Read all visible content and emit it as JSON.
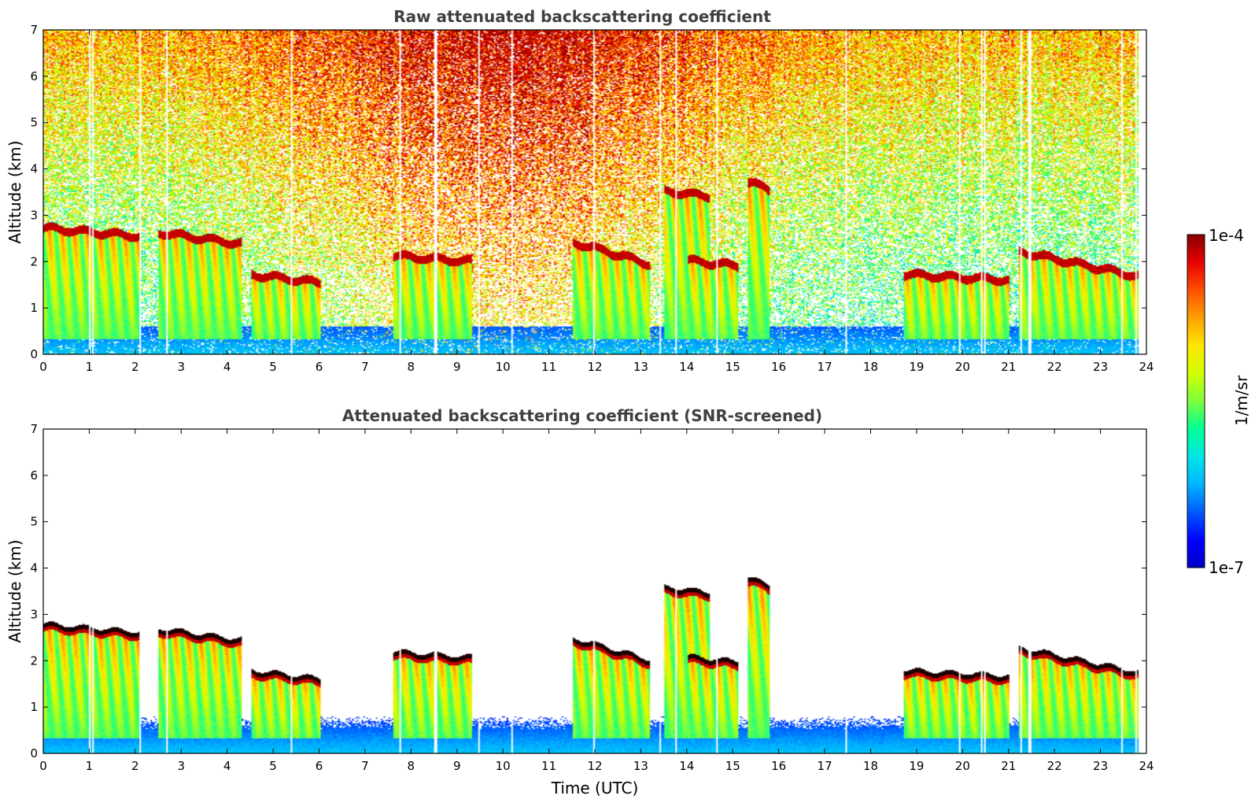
{
  "colors": {
    "colormap": [
      "#0000c8",
      "#0000ff",
      "#005aff",
      "#00b4ff",
      "#00e6e6",
      "#00ff96",
      "#7dff3c",
      "#d2ff00",
      "#ffe600",
      "#ffa000",
      "#ff5000",
      "#e60000",
      "#8b0000"
    ],
    "saturated": "#1a0000",
    "axis": "#000000",
    "title": "#404040"
  },
  "chart_data": [
    {
      "type": "heatmap",
      "title": "Raw attenuated backscattering coefficient",
      "ylabel": "Altitude (km)",
      "xlabel": "",
      "xlim": [
        0,
        24
      ],
      "ylim": [
        0,
        7
      ],
      "xticks": [
        "0",
        "1",
        "2",
        "3",
        "4",
        "5",
        "6",
        "7",
        "8",
        "9",
        "10",
        "11",
        "12",
        "13",
        "14",
        "15",
        "16",
        "17",
        "18",
        "19",
        "20",
        "21",
        "22",
        "23",
        "24"
      ],
      "yticks": [
        "0",
        "1",
        "2",
        "3",
        "4",
        "5",
        "6",
        "7"
      ],
      "data_end_hour": 23.8,
      "snr_screened": false,
      "cloud_layers": [
        {
          "t": [
            0.0,
            2.1
          ],
          "alt": [
            2.5,
            2.8
          ]
        },
        {
          "t": [
            2.5,
            4.3
          ],
          "alt": [
            2.3,
            2.7
          ]
        },
        {
          "t": [
            4.5,
            6.0
          ],
          "alt": [
            1.5,
            1.8
          ]
        },
        {
          "t": [
            7.6,
            9.3
          ],
          "alt": [
            2.0,
            2.2
          ]
        },
        {
          "t": [
            11.5,
            13.2
          ],
          "alt": [
            1.7,
            2.5
          ]
        },
        {
          "t": [
            13.5,
            14.5
          ],
          "alt": [
            3.4,
            3.6
          ]
        },
        {
          "t": [
            14.0,
            15.1
          ],
          "alt": [
            1.9,
            2.1
          ]
        },
        {
          "t": [
            15.3,
            15.8
          ],
          "alt": [
            3.5,
            3.8
          ]
        },
        {
          "t": [
            18.7,
            21.0
          ],
          "alt": [
            1.6,
            1.8
          ]
        },
        {
          "t": [
            21.2,
            23.8
          ],
          "alt": [
            1.4,
            2.3
          ]
        }
      ]
    },
    {
      "type": "heatmap",
      "title": "Attenuated backscattering coefficient (SNR-screened)",
      "ylabel": "Altitude (km)",
      "xlabel": "Time (UTC)",
      "xlim": [
        0,
        24
      ],
      "ylim": [
        0,
        7
      ],
      "xticks": [
        "0",
        "1",
        "2",
        "3",
        "4",
        "5",
        "6",
        "7",
        "8",
        "9",
        "10",
        "11",
        "12",
        "13",
        "14",
        "15",
        "16",
        "17",
        "18",
        "19",
        "20",
        "21",
        "22",
        "23",
        "24"
      ],
      "yticks": [
        "0",
        "1",
        "2",
        "3",
        "4",
        "5",
        "6",
        "7"
      ],
      "data_end_hour": 23.8,
      "snr_screened": true
    }
  ],
  "colorbar": {
    "max_label": "1e-4",
    "min_label": "1e-7",
    "unit_label": "1/m/sr"
  }
}
